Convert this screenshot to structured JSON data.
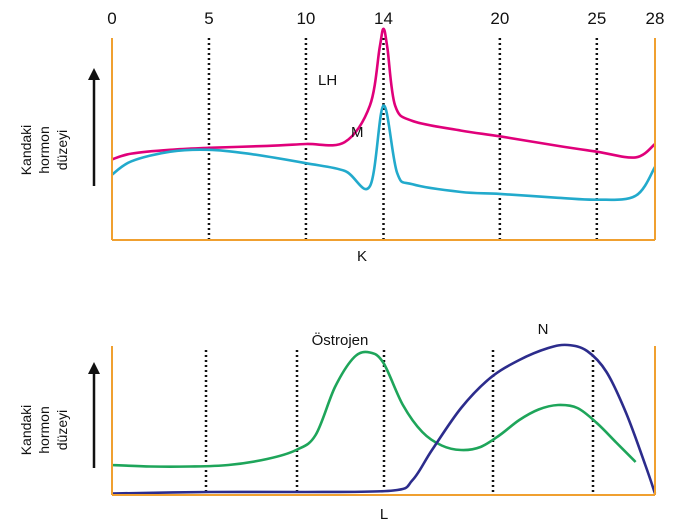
{
  "chart_data": [
    {
      "type": "line",
      "x_ticks": [
        "0",
        "5",
        "10",
        "14",
        "20",
        "25",
        "28"
      ],
      "xlim": [
        0,
        28
      ],
      "ylabel": [
        "Kandaki",
        "hormon",
        "düzeyi"
      ],
      "axis_label": "K",
      "series": [
        {
          "name": "LH",
          "color": "#e0007a",
          "x": [
            0,
            1,
            3,
            5,
            8,
            10,
            12,
            13.3,
            13.8,
            14,
            14.2,
            14.6,
            15.5,
            18,
            20,
            23,
            25,
            27,
            28
          ],
          "y": [
            0.42,
            0.45,
            0.47,
            0.48,
            0.49,
            0.5,
            0.51,
            0.7,
            1.0,
            1.1,
            1.0,
            0.7,
            0.62,
            0.57,
            0.54,
            0.49,
            0.46,
            0.43,
            0.5
          ]
        },
        {
          "name": "M",
          "color": "#22aacc",
          "x": [
            0,
            1,
            3,
            5,
            7,
            10,
            12,
            13.3,
            14,
            14.7,
            15.5,
            18,
            20,
            23,
            25,
            27,
            28
          ],
          "y": [
            0.34,
            0.41,
            0.46,
            0.47,
            0.45,
            0.4,
            0.36,
            0.28,
            0.7,
            0.35,
            0.29,
            0.25,
            0.24,
            0.22,
            0.21,
            0.23,
            0.38
          ]
        }
      ]
    },
    {
      "type": "line",
      "xlim": [
        0,
        28
      ],
      "ylabel": [
        "Kandaki",
        "hormon",
        "düzeyi"
      ],
      "axis_label": "L",
      "series": [
        {
          "name": "Östrojen",
          "color": "#1ea55a",
          "x": [
            0,
            2,
            4,
            6,
            8,
            9.5,
            10.5,
            11.5,
            12.5,
            13.3,
            14,
            15,
            16,
            17,
            18,
            19,
            20,
            21,
            22,
            23,
            24,
            25,
            26,
            27
          ],
          "y": [
            0.2,
            0.19,
            0.19,
            0.2,
            0.24,
            0.3,
            0.4,
            0.72,
            0.92,
            0.95,
            0.88,
            0.6,
            0.42,
            0.33,
            0.3,
            0.32,
            0.4,
            0.5,
            0.57,
            0.6,
            0.58,
            0.48,
            0.35,
            0.22
          ]
        },
        {
          "name": "N",
          "color": "#2c2c8c",
          "x": [
            0,
            5,
            10,
            14.5,
            15.5,
            16.5,
            18,
            19.5,
            21,
            22.5,
            23.5,
            24.5,
            25.5,
            26.5,
            27.5,
            28
          ],
          "y": [
            0.01,
            0.02,
            0.02,
            0.03,
            0.1,
            0.3,
            0.58,
            0.78,
            0.9,
            0.98,
            1.0,
            0.96,
            0.82,
            0.55,
            0.2,
            0.01
          ]
        }
      ]
    }
  ]
}
